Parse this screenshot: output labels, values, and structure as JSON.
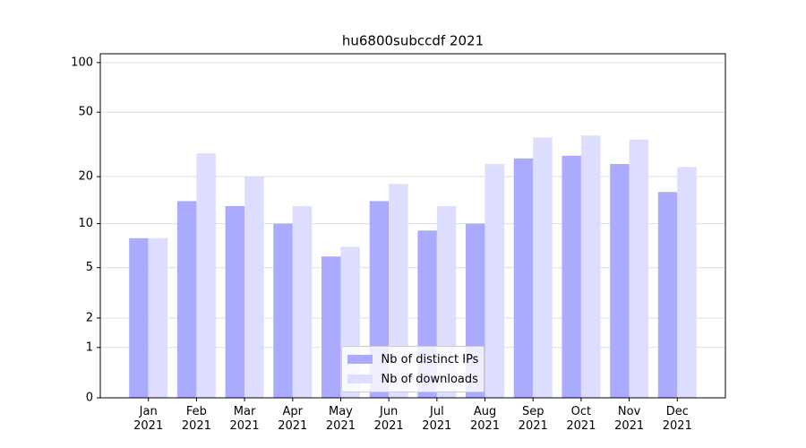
{
  "chart_data": {
    "type": "bar",
    "title": "hu6800subccdf 2021",
    "categories": [
      "Jan\n2021",
      "Feb\n2021",
      "Mar\n2021",
      "Apr\n2021",
      "May\n2021",
      "Jun\n2021",
      "Jul\n2021",
      "Aug\n2021",
      "Sep\n2021",
      "Oct\n2021",
      "Nov\n2021",
      "Dec\n2021"
    ],
    "series": [
      {
        "name": "Nb of distinct IPs",
        "color": "#aaaaff",
        "values": [
          8,
          14,
          13,
          10,
          6,
          14,
          9,
          10,
          26,
          27,
          24,
          16
        ]
      },
      {
        "name": "Nb of downloads",
        "color": "#ddddff",
        "values": [
          8,
          28,
          20,
          13,
          7,
          18,
          13,
          24,
          35,
          36,
          34,
          23
        ]
      }
    ],
    "yscale": "log1p",
    "ylim": [
      0,
      113
    ],
    "yticks": [
      0,
      1,
      2,
      5,
      10,
      20,
      50,
      100
    ],
    "grid": true,
    "legend": "lower center"
  }
}
